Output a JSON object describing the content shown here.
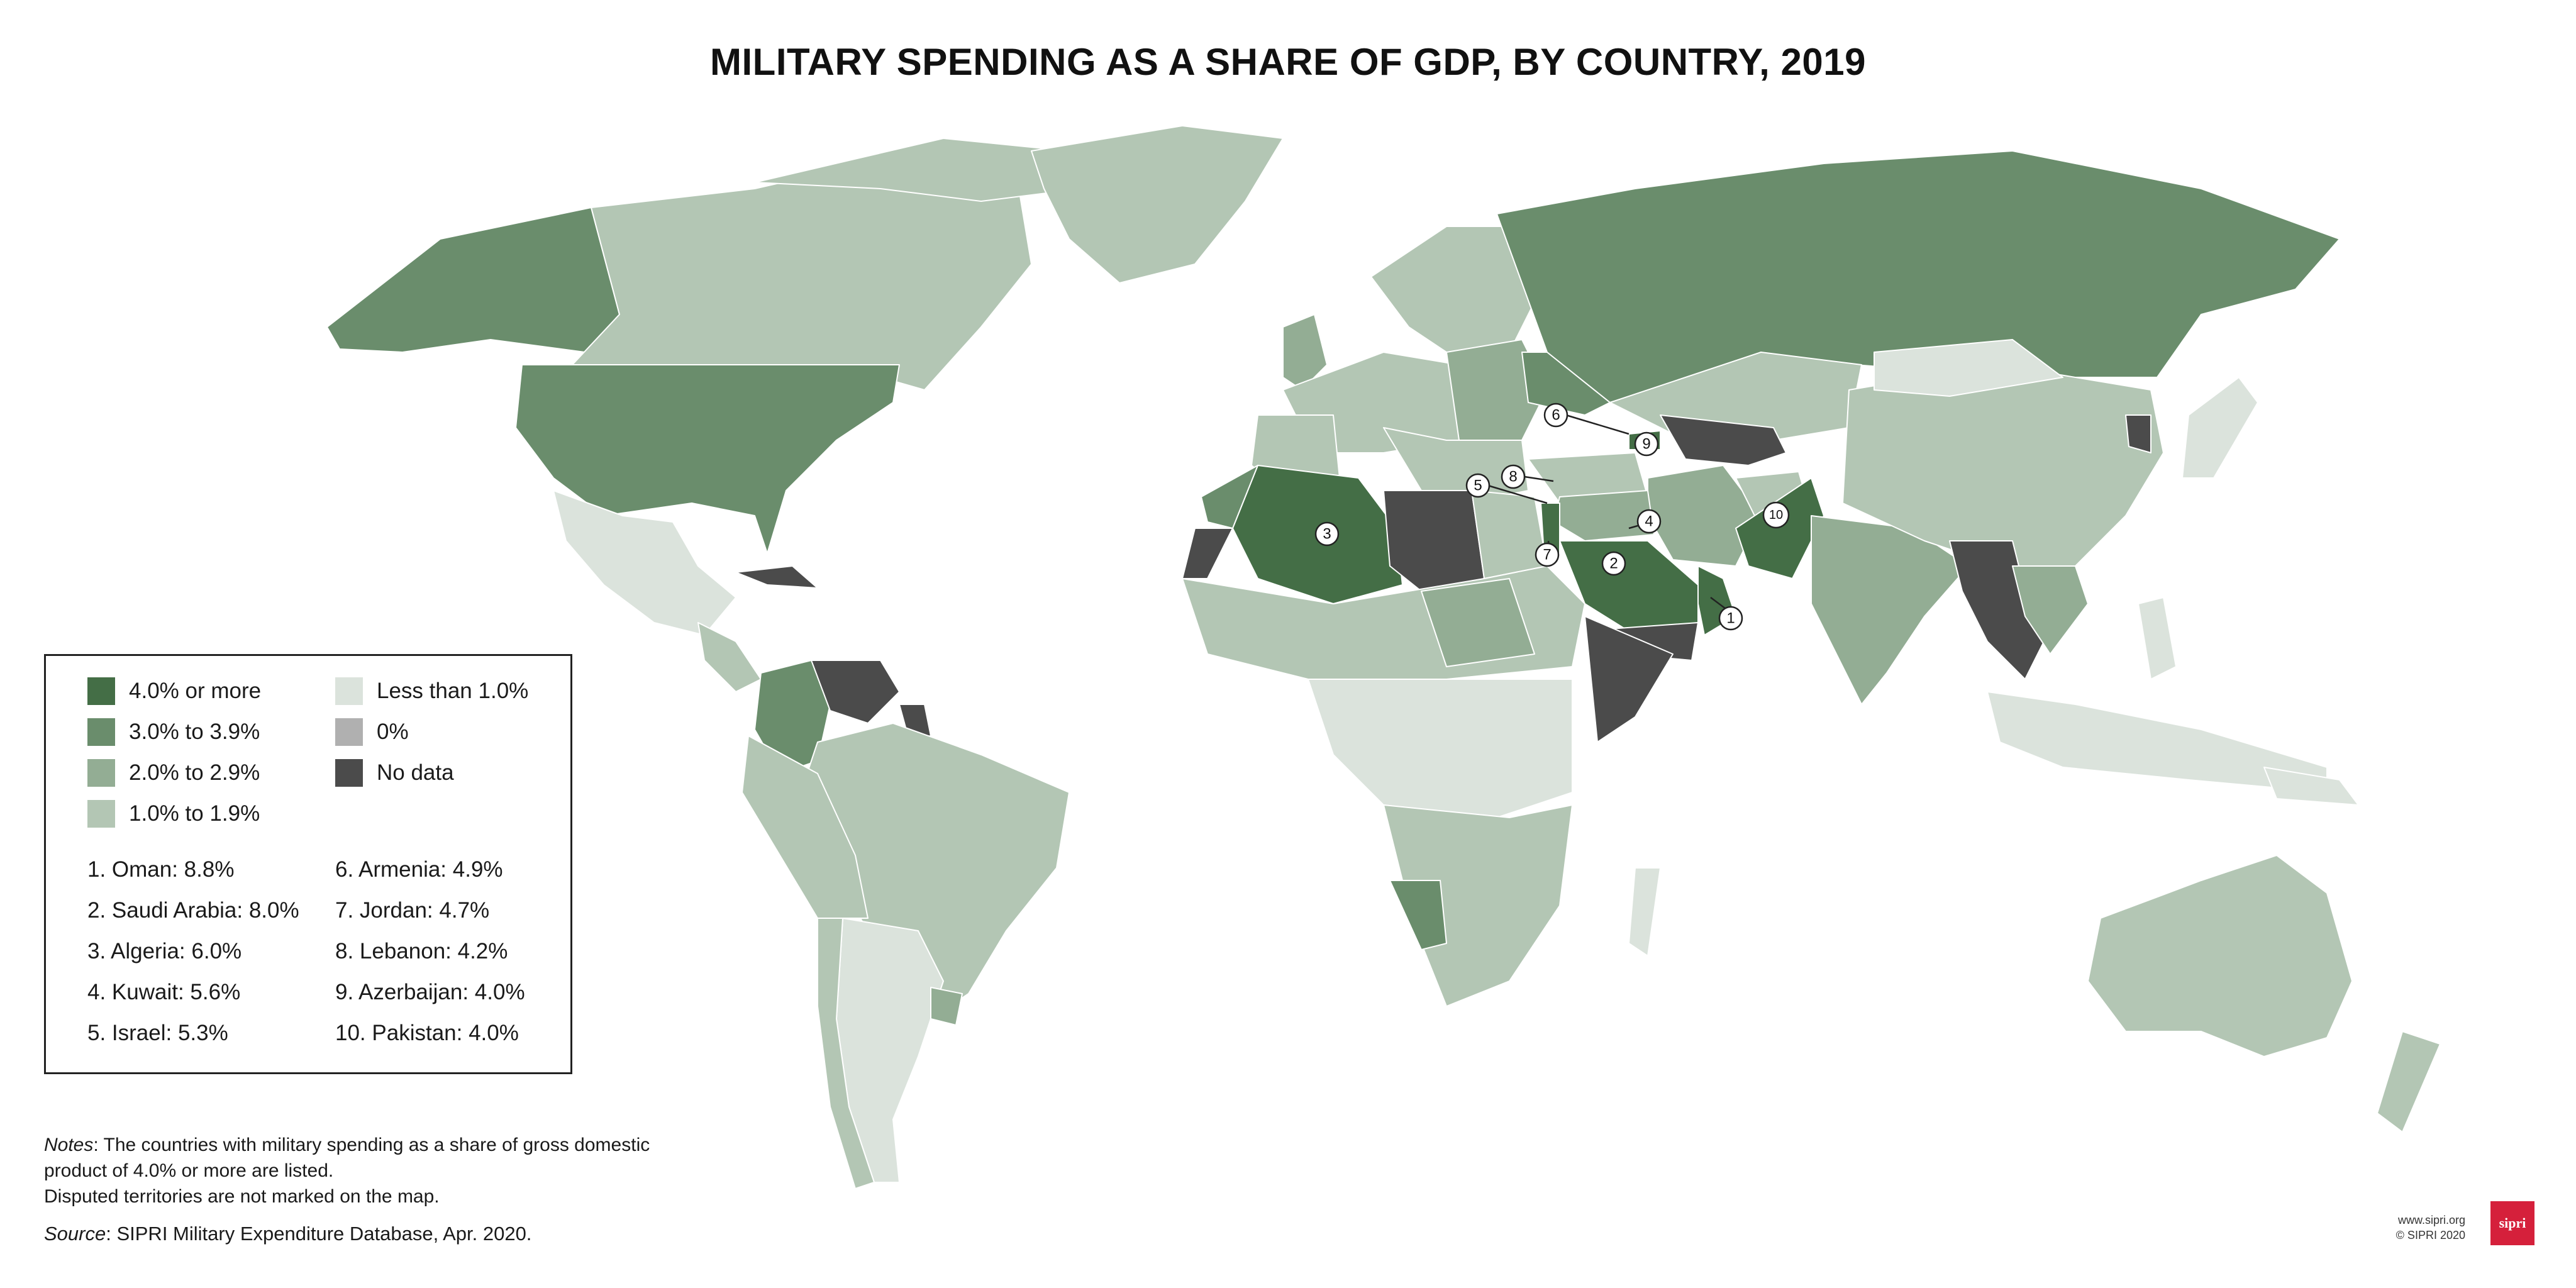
{
  "title": "MILITARY SPENDING AS A SHARE OF GDP, BY COUNTRY, 2019",
  "colors": {
    "band_4_plus": "#446e46",
    "band_3_to_3_9": "#6a8d6c",
    "band_2_to_2_9": "#93ad94",
    "band_1_to_1_9": "#b3c6b4",
    "band_less_1": "#dbe3dc",
    "band_zero": "#b0b0b0",
    "no_data": "#4b4b4b",
    "brand": "#d5203b"
  },
  "legend": {
    "categories": [
      {
        "label": "4.0% or more"
      },
      {
        "label": "3.0% to 3.9%"
      },
      {
        "label": "2.0% to 2.9%"
      },
      {
        "label": "1.0% to 1.9%"
      },
      {
        "label": "Less than 1.0%"
      },
      {
        "label": "0%"
      },
      {
        "label": "No data"
      }
    ],
    "top_countries": [
      {
        "rank": "1",
        "text": "1. Oman: 8.8%"
      },
      {
        "rank": "2",
        "text": "2. Saudi Arabia: 8.0%"
      },
      {
        "rank": "3",
        "text": "3. Algeria: 6.0%"
      },
      {
        "rank": "4",
        "text": "4. Kuwait: 5.6%"
      },
      {
        "rank": "5",
        "text": "5. Israel: 5.3%"
      },
      {
        "rank": "6",
        "text": "6. Armenia: 4.9%"
      },
      {
        "rank": "7",
        "text": "7. Jordan: 4.7%"
      },
      {
        "rank": "8",
        "text": "8. Lebanon: 4.2%"
      },
      {
        "rank": "9",
        "text": "9. Azerbaijan: 4.0%"
      },
      {
        "rank": "10",
        "text": "10. Pakistan: 4.0%"
      }
    ]
  },
  "callout_labels": [
    "1",
    "2",
    "3",
    "4",
    "5",
    "6",
    "7",
    "8",
    "9",
    "10"
  ],
  "notes": {
    "label": "Notes",
    "line1": ": The countries with military spending as a share of gross domestic",
    "line2": "product of 4.0% or more are listed.",
    "line3": "Disputed territories are not marked on the map."
  },
  "source": {
    "label": "Source",
    "text": ": SIPRI Military Expenditure Database, Apr. 2020."
  },
  "footer": {
    "website": "www.sipri.org",
    "copyright": "© SIPRI 2020",
    "logo_text": "sipri"
  }
}
